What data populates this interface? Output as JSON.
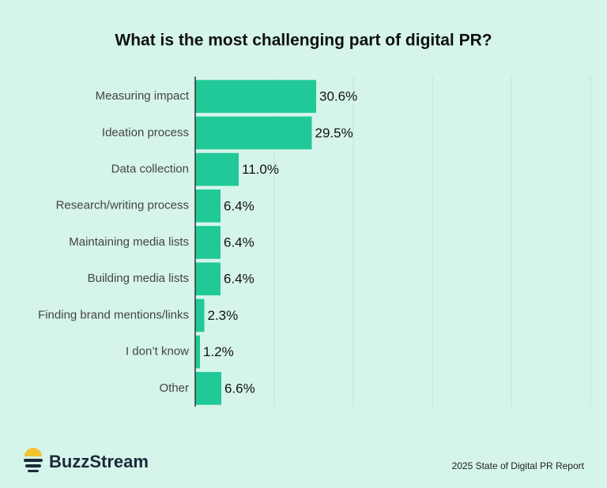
{
  "chart_data": {
    "type": "bar",
    "orientation": "horizontal",
    "title": "What is the most challenging part of digital PR?",
    "categories": [
      "Measuring impact",
      "Ideation process",
      "Data collection",
      "Research/writing process",
      "Maintaining media lists",
      "Building media lists",
      "Finding brand mentions/links",
      "I don’t know",
      "Other"
    ],
    "values": [
      30.6,
      29.5,
      11.0,
      6.4,
      6.4,
      6.4,
      2.3,
      1.2,
      6.6
    ],
    "value_labels": [
      "30.6%",
      "29.5%",
      "11.0%",
      "6.4%",
      "6.4%",
      "6.4%",
      "2.3%",
      "1.2%",
      "6.6%"
    ],
    "color": "#20c997",
    "xlim": [
      0,
      100
    ],
    "xticks": [
      20,
      40,
      60,
      80,
      100
    ],
    "grid": true,
    "brand": "BuzzStream",
    "source": "2025 State of Digital PR Report"
  }
}
